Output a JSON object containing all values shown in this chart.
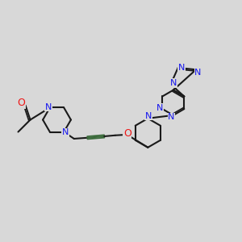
{
  "bg_color": "#d8d8d8",
  "bond_color": "#1a1a1a",
  "N_color": "#1414ee",
  "O_color": "#ee1414",
  "triple_color": "#3a6a3a",
  "lw": 1.5,
  "fs": 7.5,
  "xlim": [
    0,
    10
  ],
  "ylim": [
    2,
    8
  ]
}
